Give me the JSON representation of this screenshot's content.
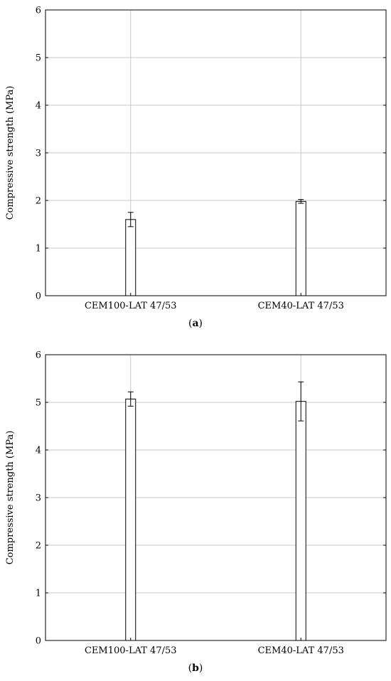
{
  "chart_data": [
    {
      "type": "bar",
      "caption_letter": "a",
      "categories": [
        "CEM100-LAT 47/53",
        "CEM40-LAT 47/53"
      ],
      "values": [
        1.6,
        1.98
      ],
      "errors": [
        0.15,
        0.04
      ],
      "xlabel": "",
      "ylabel": "Compressive strength (MPa)",
      "ylim": [
        0,
        6
      ],
      "yticks": [
        0,
        1,
        2,
        3,
        4,
        5,
        6
      ],
      "grid": true
    },
    {
      "type": "bar",
      "caption_letter": "b",
      "categories": [
        "CEM100-LAT 47/53",
        "CEM40-LAT 47/53"
      ],
      "values": [
        5.07,
        5.02
      ],
      "errors": [
        0.15,
        0.41
      ],
      "xlabel": "",
      "ylabel": "Compressive strength (MPa)",
      "ylim": [
        0,
        6
      ],
      "yticks": [
        0,
        1,
        2,
        3,
        4,
        5,
        6
      ],
      "grid": true
    }
  ]
}
